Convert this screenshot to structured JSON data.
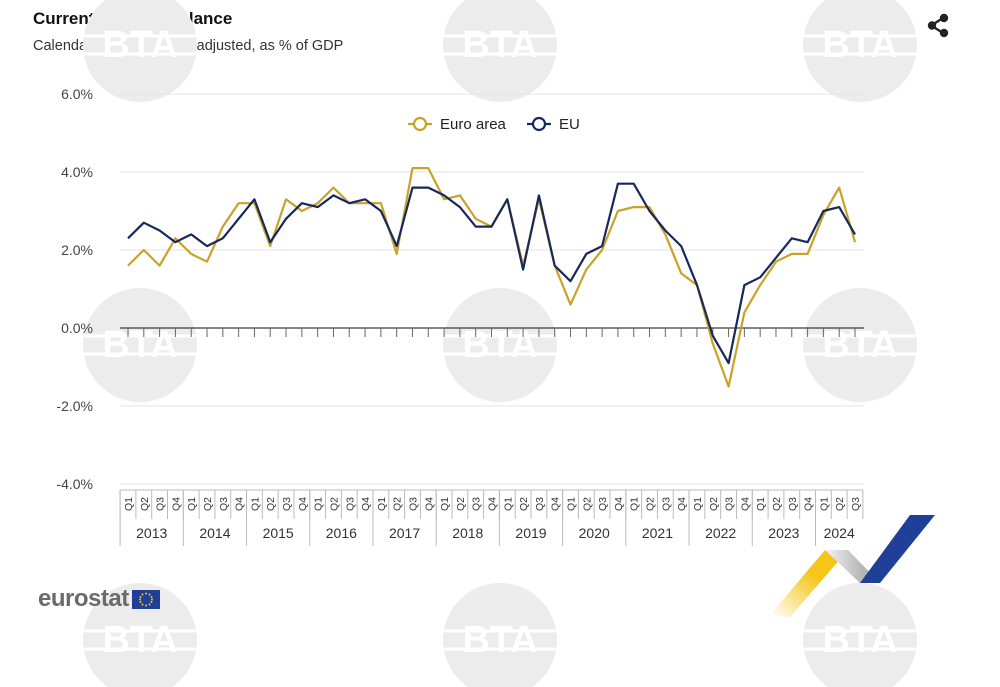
{
  "header": {
    "title": "Current account balance",
    "subtitle": "Calendar and seasonally adjusted, as % of GDP"
  },
  "icons": {
    "share": "share-icon",
    "logo_flag": "eu-flag-icon"
  },
  "logo": {
    "text": "eurostat"
  },
  "watermark": {
    "text": "BTA"
  },
  "colors": {
    "euro_area": "#c9a227",
    "eu": "#16285c",
    "grid": "#e3e3e3",
    "zero_line": "#3a3a3a",
    "logo_blue": "#1f3f99",
    "logo_yellow": "#f5c518"
  },
  "chart_data": {
    "type": "line",
    "title": "Current account balance",
    "subtitle": "Calendar and seasonally adjusted, as % of GDP",
    "ylim": [
      -4,
      6
    ],
    "yticks": [
      -4,
      -2,
      0,
      2,
      4,
      6
    ],
    "ytick_labels": [
      "-4.0%",
      "-2.0%",
      "0.0%",
      "2.0%",
      "4.0%",
      "6.0%"
    ],
    "grid": true,
    "legend_position": "top-center",
    "quarters": [
      "Q1",
      "Q2",
      "Q3",
      "Q4",
      "Q1",
      "Q2",
      "Q3",
      "Q4",
      "Q1",
      "Q2",
      "Q3",
      "Q4",
      "Q1",
      "Q2",
      "Q3",
      "Q4",
      "Q1",
      "Q2",
      "Q3",
      "Q4",
      "Q1",
      "Q2",
      "Q3",
      "Q4",
      "Q1",
      "Q2",
      "Q3",
      "Q4",
      "Q1",
      "Q2",
      "Q3",
      "Q4",
      "Q1",
      "Q2",
      "Q3",
      "Q4",
      "Q1",
      "Q2",
      "Q3",
      "Q4",
      "Q1",
      "Q2",
      "Q3",
      "Q4",
      "Q1",
      "Q2",
      "Q3"
    ],
    "years": [
      "2013",
      "2014",
      "2015",
      "2016",
      "2017",
      "2018",
      "2019",
      "2020",
      "2021",
      "2022",
      "2023",
      "2024"
    ],
    "series": [
      {
        "name": "Euro area",
        "values": [
          1.6,
          2.0,
          1.6,
          2.3,
          1.9,
          1.7,
          2.6,
          3.2,
          3.2,
          2.1,
          3.3,
          3.0,
          3.2,
          3.6,
          3.2,
          3.2,
          3.2,
          1.9,
          4.1,
          4.1,
          3.3,
          3.4,
          2.8,
          2.6,
          3.3,
          1.6,
          3.3,
          1.6,
          0.6,
          1.5,
          2.0,
          3.0,
          3.1,
          3.1,
          2.4,
          1.4,
          1.1,
          -0.4,
          -1.5,
          0.4,
          1.1,
          1.7,
          1.9,
          1.9,
          2.9,
          3.6,
          2.2
        ]
      },
      {
        "name": "EU",
        "values": [
          2.3,
          2.7,
          2.5,
          2.2,
          2.4,
          2.1,
          2.3,
          2.8,
          3.3,
          2.2,
          2.8,
          3.2,
          3.1,
          3.4,
          3.2,
          3.3,
          3.0,
          2.1,
          3.6,
          3.6,
          3.4,
          3.1,
          2.6,
          2.6,
          3.3,
          1.5,
          3.4,
          1.6,
          1.2,
          1.9,
          2.1,
          3.7,
          3.7,
          3.0,
          2.5,
          2.1,
          1.1,
          -0.2,
          -0.9,
          1.1,
          1.3,
          1.8,
          2.3,
          2.2,
          3.0,
          3.1,
          2.4
        ]
      }
    ]
  }
}
